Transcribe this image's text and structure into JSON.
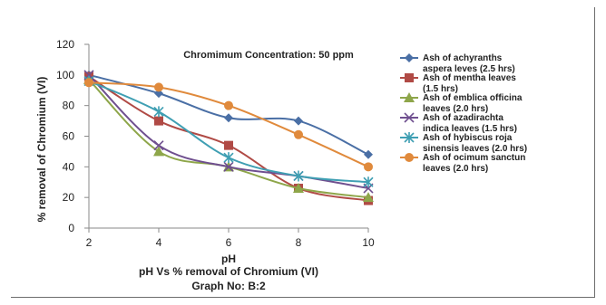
{
  "chart_data": {
    "type": "line",
    "title": "Chromimum Concentration: 50 ppm",
    "xlabel": "pH",
    "ylabel": "% removal of Chromium (VI)",
    "x": [
      2,
      4,
      6,
      8,
      10
    ],
    "xlim": [
      2,
      10
    ],
    "ylim": [
      0,
      120
    ],
    "yticks": [
      0,
      20,
      40,
      60,
      80,
      100,
      120
    ],
    "grid": false,
    "legend": "right",
    "series": [
      {
        "name": "Ash of achyranths aspera leves (2.5 hrs)",
        "legend_lines": [
          "Ash of achyranths",
          "aspera leves (2.5 hrs)"
        ],
        "color": "#4a6fa5",
        "marker": "diamond",
        "values": [
          100,
          88,
          72,
          70,
          48
        ]
      },
      {
        "name": "Ash of mentha leaves (1.5 hrs)",
        "legend_lines": [
          "Ash of mentha leaves",
          "(1.5 hrs)"
        ],
        "color": "#b04a45",
        "marker": "square",
        "values": [
          99,
          70,
          54,
          26,
          18
        ]
      },
      {
        "name": "Ash of emblica officina leaves (2.0 hrs)",
        "legend_lines": [
          "Ash of emblica officina",
          "leaves (2.0 hrs)"
        ],
        "color": "#8ea64a",
        "marker": "triangle",
        "values": [
          97,
          50,
          40,
          26,
          20
        ]
      },
      {
        "name": "Ash of azadirachta indica leaves (1.5 hrs)",
        "legend_lines": [
          "Ash of azadirachta",
          "indica leaves (1.5 hrs)"
        ],
        "color": "#6f4f8f",
        "marker": "x",
        "values": [
          100,
          54,
          40,
          34,
          26
        ]
      },
      {
        "name": "Ash of hybiscus roja sinensis leaves (2.0 hrs)",
        "legend_lines": [
          "Ash of hybiscus roja",
          "sinensis leaves (2.0 hrs)"
        ],
        "color": "#3f9fb3",
        "marker": "star",
        "values": [
          96,
          76,
          46,
          34,
          30
        ]
      },
      {
        "name": "Ash of ocimum sanctun leaves (2.0 hrs)",
        "legend_lines": [
          "Ash of ocimum sanctun",
          "leaves (2.0 hrs)"
        ],
        "color": "#e08a3c",
        "marker": "circle",
        "values": [
          95,
          92,
          80,
          61,
          40
        ]
      }
    ],
    "caption_lines": [
      "pH Vs % removal of Chromium (VI)",
      "Graph No: B:2"
    ]
  }
}
